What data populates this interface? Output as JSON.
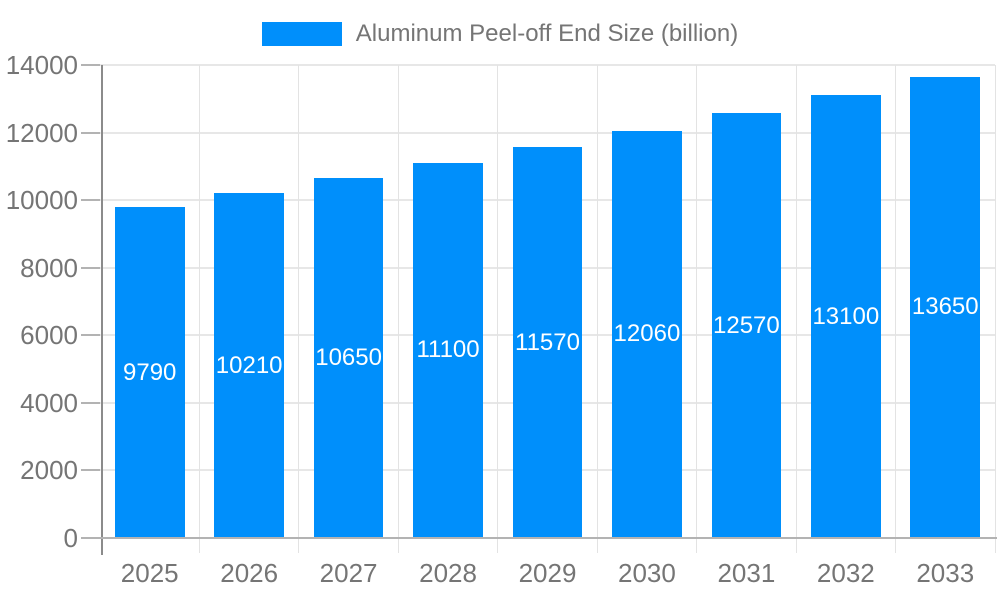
{
  "chart_data": {
    "type": "bar",
    "title": "",
    "legend": "Aluminum Peel-off End Size (billion)",
    "legend_position": "top-center",
    "categories": [
      "2025",
      "2026",
      "2027",
      "2028",
      "2029",
      "2030",
      "2031",
      "2032",
      "2033"
    ],
    "series": [
      {
        "name": "Aluminum Peel-off End Size (billion)",
        "values": [
          9790,
          10210,
          10650,
          11100,
          11570,
          12060,
          12570,
          13100,
          13650
        ]
      }
    ],
    "xlabel": "",
    "ylabel": "",
    "ylim": [
      0,
      14000
    ],
    "yticks": [
      0,
      2000,
      4000,
      6000,
      8000,
      10000,
      12000,
      14000
    ],
    "grid": true,
    "bar_labels_visible": true,
    "colors": {
      "bar": "#008ffb",
      "bar_label": "#ffffff",
      "axis_text": "#757575",
      "h_grid_line": "#e7e7e7",
      "v_grid_line": "#e3e3e3",
      "tick": "#b3b3b3",
      "x_axis_line": "#b3b3b3",
      "y_axis_line": "#8b8b8b",
      "background": "#ffffff"
    }
  }
}
